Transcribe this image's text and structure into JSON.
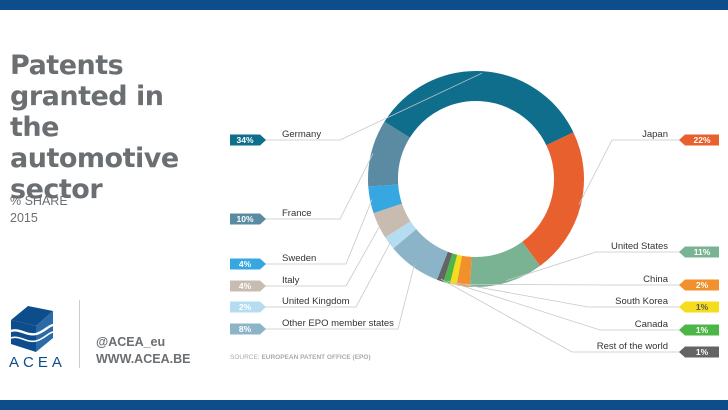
{
  "header": {
    "title_lines": [
      "Patents",
      "granted in",
      "the automotive",
      "sector"
    ],
    "subtitle": "% SHARE",
    "year": "2015"
  },
  "brand": {
    "logo_text": "ACEA",
    "twitter": "@ACEA_eu",
    "website": "WWW.ACEA.BE",
    "primary_color": "#0d4d8c"
  },
  "source": {
    "prefix": "SOURCE:",
    "name": "EUROPEAN PATENT OFFICE (EPO)"
  },
  "chart_data": {
    "type": "pie",
    "variant": "donut",
    "title": "Patents granted in the automotive sector",
    "subtitle": "% SHARE 2015",
    "unit": "%",
    "slices": [
      {
        "name": "Germany",
        "value": 34,
        "label": "34%",
        "color": "#0f6e8c"
      },
      {
        "name": "Japan",
        "value": 22,
        "label": "22%",
        "color": "#e8602e"
      },
      {
        "name": "United States",
        "value": 11,
        "label": "11%",
        "color": "#7ab294"
      },
      {
        "name": "China",
        "value": 2,
        "label": "2%",
        "color": "#f2902d"
      },
      {
        "name": "South Korea",
        "value": 1,
        "label": "1%",
        "color": "#f5dc1c"
      },
      {
        "name": "Canada",
        "value": 1,
        "label": "1%",
        "color": "#4cb748"
      },
      {
        "name": "Rest of the world",
        "value": 1,
        "label": "1%",
        "color": "#636466"
      },
      {
        "name": "Other EPO member states",
        "value": 8,
        "label": "8%",
        "color": "#8cb4c8"
      },
      {
        "name": "United Kingdom",
        "value": 2,
        "label": "2%",
        "color": "#b5dcf0"
      },
      {
        "name": "Italy",
        "value": 4,
        "label": "4%",
        "color": "#c7bcaf"
      },
      {
        "name": "Sweden",
        "value": 4,
        "label": "4%",
        "color": "#37a7e2"
      },
      {
        "name": "France",
        "value": 10,
        "label": "10%",
        "color": "#5a8ba2"
      }
    ]
  }
}
